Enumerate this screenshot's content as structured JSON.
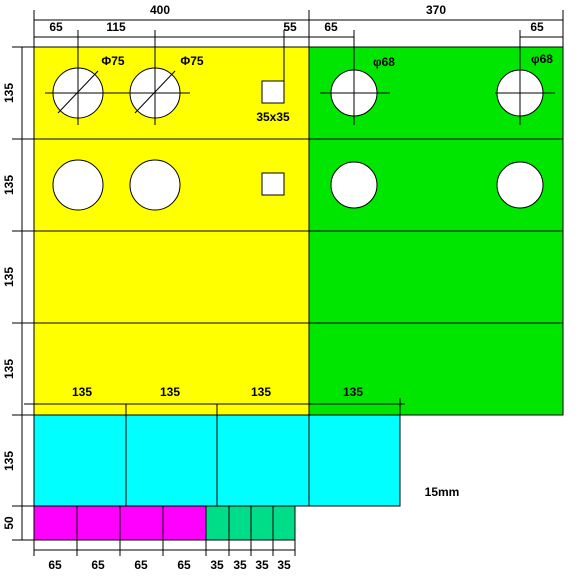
{
  "dimensions": {
    "top_total": [
      "400",
      "370"
    ],
    "top_detail": [
      "65",
      "115",
      "55",
      "65",
      "65"
    ],
    "left": [
      "135",
      "135",
      "135",
      "135",
      "135",
      "50"
    ],
    "middle": [
      "135",
      "135",
      "135",
      "135"
    ],
    "bottom": [
      "65",
      "65",
      "65",
      "65",
      "35",
      "35",
      "35",
      "35"
    ]
  },
  "holes": {
    "yellow_diameter": [
      "Φ75",
      "Φ75"
    ],
    "green_diameter": [
      "φ68",
      "φ68"
    ],
    "square": "35x35"
  },
  "note": "15mm"
}
